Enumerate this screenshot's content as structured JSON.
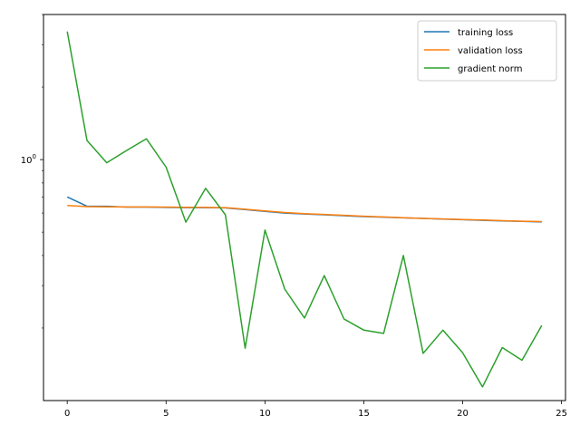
{
  "chart_data": {
    "type": "line",
    "title": "",
    "xlabel": "",
    "ylabel": "",
    "xlim": [
      -1.2,
      25.2
    ],
    "ylim": [
      0.1,
      4.0
    ],
    "yscale": "log",
    "grid": false,
    "legend_position": "top-right",
    "x_ticks": [
      0,
      5,
      10,
      15,
      20,
      25
    ],
    "x_tick_labels": [
      "0",
      "5",
      "10",
      "15",
      "20",
      "25"
    ],
    "y_ticks": [
      1
    ],
    "y_tick_labels": [
      "10^0"
    ],
    "x": [
      0,
      1,
      2,
      3,
      4,
      5,
      6,
      7,
      8,
      9,
      10,
      11,
      12,
      13,
      14,
      15,
      16,
      17,
      18,
      19,
      20,
      21,
      22,
      23,
      24
    ],
    "series": [
      {
        "name": "training loss",
        "color": "#1f77b4",
        "values": [
          0.7,
          0.64,
          0.64,
          0.635,
          0.635,
          0.633,
          0.632,
          0.632,
          0.63,
          0.62,
          0.61,
          0.6,
          0.595,
          0.59,
          0.585,
          0.58,
          0.577,
          0.573,
          0.57,
          0.566,
          0.563,
          0.56,
          0.557,
          0.554,
          0.551
        ]
      },
      {
        "name": "validation loss",
        "color": "#ff7f0e",
        "values": [
          0.645,
          0.638,
          0.637,
          0.636,
          0.636,
          0.635,
          0.634,
          0.633,
          0.632,
          0.622,
          0.612,
          0.603,
          0.597,
          0.592,
          0.587,
          0.582,
          0.578,
          0.574,
          0.57,
          0.567,
          0.564,
          0.561,
          0.558,
          0.555,
          0.553
        ]
      },
      {
        "name": "gradient norm",
        "color": "#2ca02c",
        "values": [
          3.4,
          1.2,
          0.97,
          1.09,
          1.22,
          0.93,
          0.55,
          0.76,
          0.59,
          0.165,
          0.51,
          0.29,
          0.22,
          0.33,
          0.218,
          0.196,
          0.19,
          0.4,
          0.157,
          0.196,
          0.158,
          0.114,
          0.166,
          0.147,
          0.205
        ]
      }
    ]
  }
}
